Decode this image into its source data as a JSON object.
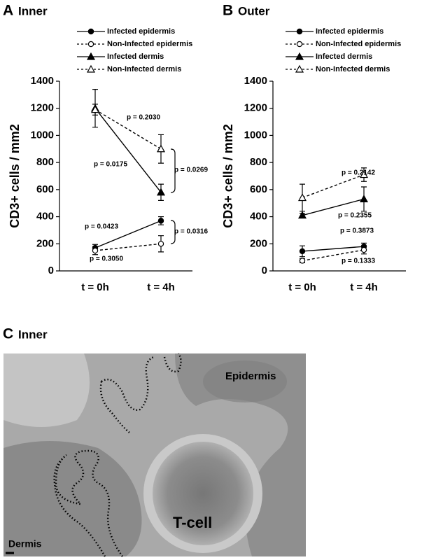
{
  "chart_data": [
    {
      "type": "line",
      "panel": "A",
      "title": "Inner",
      "ylabel": "CD3+ cells / mm2",
      "categories": [
        "t = 0h",
        "t = 4h"
      ],
      "ylim": [
        0,
        1400
      ],
      "yticks": [
        0,
        200,
        400,
        600,
        800,
        1000,
        1200,
        1400
      ],
      "series": [
        {
          "name": "Infected epidermis",
          "color": "#000000",
          "marker": "circle",
          "filled": true,
          "dashed": false,
          "values": [
            170,
            370
          ],
          "errors": [
            25,
            30
          ]
        },
        {
          "name": "Non-Infected epidermis",
          "color": "#000000",
          "marker": "circle",
          "filled": false,
          "dashed": true,
          "values": [
            150,
            200
          ],
          "errors": [
            30,
            60
          ]
        },
        {
          "name": "Infected dermis",
          "color": "#000000",
          "marker": "triangle",
          "filled": true,
          "dashed": false,
          "values": [
            1200,
            580
          ],
          "errors": [
            140,
            60
          ]
        },
        {
          "name": "Non-Infected dermis",
          "color": "#000000",
          "marker": "triangle",
          "filled": false,
          "dashed": true,
          "values": [
            1190,
            900
          ],
          "errors": [
            40,
            105
          ]
        }
      ],
      "annotations": [
        "p = 0.2030",
        "p = 0.0175",
        "p = 0.0269",
        "p = 0.0423",
        "p = 0.0316",
        "p = 0.3050"
      ]
    },
    {
      "type": "line",
      "panel": "B",
      "title": "Outer",
      "ylabel": "CD3+ cells / mm2",
      "categories": [
        "t = 0h",
        "t = 4h"
      ],
      "ylim": [
        0,
        1400
      ],
      "yticks": [
        0,
        200,
        400,
        600,
        800,
        1000,
        1200,
        1400
      ],
      "series": [
        {
          "name": "Infected epidermis",
          "color": "#000000",
          "marker": "circle",
          "filled": true,
          "dashed": false,
          "values": [
            145,
            180
          ],
          "errors": [
            40,
            25
          ]
        },
        {
          "name": "Non-Infected epidermis",
          "color": "#000000",
          "marker": "circle",
          "filled": false,
          "dashed": true,
          "values": [
            75,
            155
          ],
          "errors": [
            15,
            30
          ]
        },
        {
          "name": "Infected dermis",
          "color": "#000000",
          "marker": "triangle",
          "filled": true,
          "dashed": false,
          "values": [
            410,
            530
          ],
          "errors": [
            15,
            90
          ]
        },
        {
          "name": "Non-Infected dermis",
          "color": "#000000",
          "marker": "triangle",
          "filled": false,
          "dashed": true,
          "values": [
            540,
            710
          ],
          "errors": [
            100,
            50
          ]
        }
      ],
      "annotations": [
        "p = 0.2142",
        "p = 0.2355",
        "p = 0.3873",
        "p = 0.1333"
      ]
    }
  ],
  "panel_c": {
    "panel": "C",
    "title": "Inner",
    "labels": [
      "Epidermis",
      "T-cell",
      "Dermis"
    ]
  }
}
